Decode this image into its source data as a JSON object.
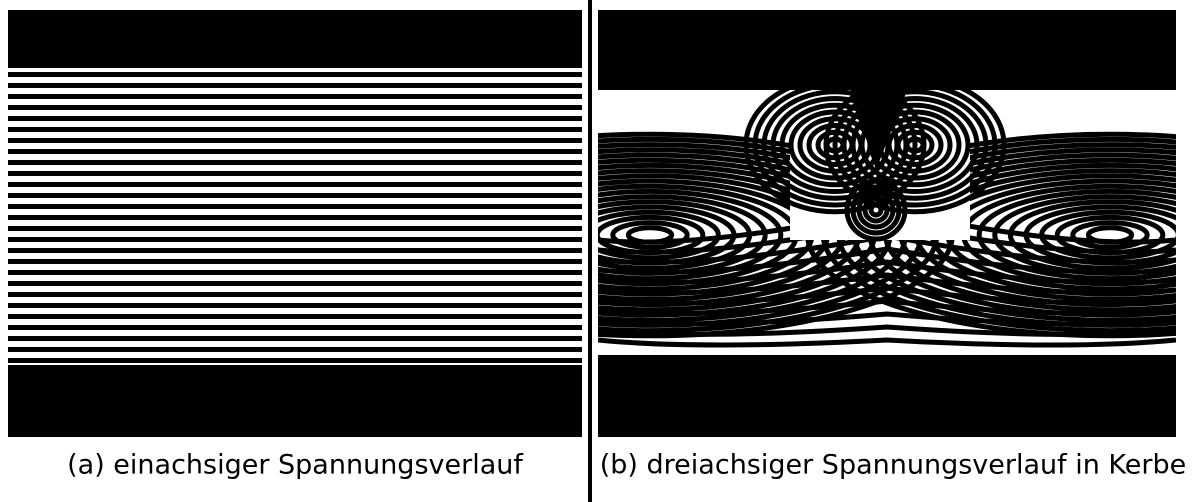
{
  "figure": {
    "panels": [
      {
        "caption": "(a) einachsiger Spannungsverlauf"
      },
      {
        "caption": "(b) dreiachsiger Spannungsverlauf in Kerbe"
      }
    ]
  }
}
